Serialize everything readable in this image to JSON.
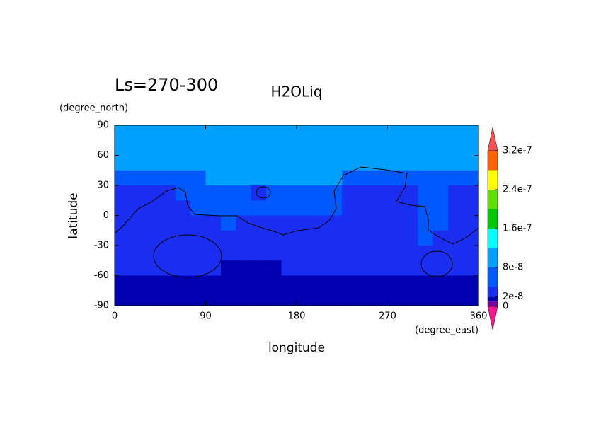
{
  "chart_data": {
    "type": "contour",
    "title": "H2OLiq",
    "subtitle": "Ls=270-300",
    "x_label": "longitude",
    "y_label": "latitude",
    "x_unit": "(degree_east)",
    "y_unit": "(degree_north)",
    "xlim": [
      0,
      360
    ],
    "xticks": [
      0,
      90,
      180,
      270,
      360
    ],
    "ylim": [
      -90,
      90
    ],
    "yticks": [
      90,
      60,
      30,
      0,
      -30,
      -60,
      -90
    ],
    "x": [
      7.5,
      22.5,
      37.5,
      52.5,
      67.5,
      82.5,
      97.5,
      112.5,
      127.5,
      142.5,
      157.5,
      172.5,
      187.5,
      202.5,
      217.5,
      232.5,
      247.5,
      262.5,
      277.5,
      292.5,
      307.5,
      322.5,
      337.5,
      352.5
    ],
    "y": [
      82.5,
      67.5,
      52.5,
      37.5,
      22.5,
      7.5,
      -7.5,
      -22.5,
      -37.5,
      -52.5,
      -67.5,
      -82.5
    ],
    "z": [
      [
        1e-07,
        1e-07,
        1e-07,
        1e-07,
        1e-07,
        1e-07,
        1e-07,
        1e-07,
        1e-07,
        1e-07,
        1e-07,
        1e-07,
        1e-07,
        1e-07,
        1e-07,
        1e-07,
        1e-07,
        1e-07,
        1e-07,
        1e-07,
        1e-07,
        1e-07,
        1e-07,
        1e-07
      ],
      [
        1e-07,
        1e-07,
        1e-07,
        1e-07,
        1e-07,
        1e-07,
        1e-07,
        1e-07,
        1e-07,
        1e-07,
        1e-07,
        1e-07,
        1e-07,
        1e-07,
        1e-07,
        1e-07,
        1e-07,
        1e-07,
        1e-07,
        1e-07,
        1e-07,
        1e-07,
        1e-07,
        1e-07
      ],
      [
        1e-07,
        1e-07,
        1e-07,
        1e-07,
        1e-07,
        1e-07,
        1e-07,
        1e-07,
        1e-07,
        1e-07,
        1e-07,
        1e-07,
        1e-07,
        1e-07,
        1e-07,
        1e-07,
        1e-07,
        1e-07,
        1e-07,
        1e-07,
        1e-07,
        1e-07,
        1e-07,
        1e-07
      ],
      [
        6e-08,
        6e-08,
        6e-08,
        6e-08,
        6e-08,
        6e-08,
        1e-07,
        1e-07,
        1e-07,
        1e-07,
        1e-07,
        1e-07,
        1e-07,
        1e-07,
        1e-07,
        6e-08,
        6e-08,
        6e-08,
        6e-08,
        6e-08,
        6e-08,
        6e-08,
        6e-08,
        6e-08
      ],
      [
        3e-08,
        3e-08,
        3e-08,
        3e-08,
        6e-08,
        6e-08,
        6e-08,
        6e-08,
        6e-08,
        3e-08,
        6e-08,
        6e-08,
        6e-08,
        6e-08,
        6e-08,
        3e-08,
        3e-08,
        3e-08,
        3e-08,
        3e-08,
        6e-08,
        6e-08,
        3e-08,
        3e-08
      ],
      [
        3e-08,
        3e-08,
        3e-08,
        3e-08,
        3e-08,
        6e-08,
        6e-08,
        6e-08,
        6e-08,
        6e-08,
        6e-08,
        6e-08,
        6e-08,
        6e-08,
        6e-08,
        3e-08,
        3e-08,
        3e-08,
        3e-08,
        3e-08,
        6e-08,
        6e-08,
        3e-08,
        3e-08
      ],
      [
        3e-08,
        3e-08,
        3e-08,
        3e-08,
        3e-08,
        3e-08,
        3e-08,
        6e-08,
        3e-08,
        3e-08,
        3e-08,
        3e-08,
        3e-08,
        3e-08,
        3e-08,
        3e-08,
        3e-08,
        3e-08,
        3e-08,
        3e-08,
        6e-08,
        6e-08,
        3e-08,
        3e-08
      ],
      [
        3e-08,
        3e-08,
        3e-08,
        3e-08,
        3e-08,
        3e-08,
        3e-08,
        3e-08,
        3e-08,
        3e-08,
        3e-08,
        3e-08,
        3e-08,
        3e-08,
        3e-08,
        3e-08,
        3e-08,
        3e-08,
        3e-08,
        3e-08,
        6e-08,
        3e-08,
        3e-08,
        3e-08
      ],
      [
        3e-08,
        3e-08,
        3e-08,
        3e-08,
        3e-08,
        3e-08,
        3e-08,
        3e-08,
        3e-08,
        3e-08,
        3e-08,
        3e-08,
        3e-08,
        3e-08,
        3e-08,
        3e-08,
        3e-08,
        3e-08,
        3e-08,
        3e-08,
        3e-08,
        3e-08,
        3e-08,
        3e-08
      ],
      [
        3e-08,
        3e-08,
        3e-08,
        3e-08,
        3e-08,
        3e-08,
        3e-08,
        1.5e-08,
        1.5e-08,
        1.5e-08,
        1.5e-08,
        3e-08,
        3e-08,
        3e-08,
        3e-08,
        3e-08,
        3e-08,
        3e-08,
        3e-08,
        3e-08,
        3e-08,
        3e-08,
        3e-08,
        3e-08
      ],
      [
        1.5e-08,
        1.5e-08,
        1.5e-08,
        1.5e-08,
        1.5e-08,
        1.5e-08,
        1.5e-08,
        1.5e-08,
        1.5e-08,
        1.5e-08,
        1.5e-08,
        1.5e-08,
        1.5e-08,
        1.5e-08,
        1.5e-08,
        1.5e-08,
        1.5e-08,
        1.5e-08,
        1.5e-08,
        1.5e-08,
        1.5e-08,
        1.5e-08,
        1.5e-08,
        1.5e-08
      ],
      [
        1.5e-08,
        1.5e-08,
        1.5e-08,
        1.5e-08,
        1.5e-08,
        1.5e-08,
        1.5e-08,
        1.5e-08,
        1.5e-08,
        1.5e-08,
        1.5e-08,
        1.5e-08,
        1.5e-08,
        1.5e-08,
        1.5e-08,
        1.5e-08,
        1.5e-08,
        1.5e-08,
        1.5e-08,
        1.5e-08,
        1.5e-08,
        1.5e-08,
        1.5e-08,
        1.5e-08
      ]
    ],
    "levels": [
      0,
      1e-08,
      2e-08,
      4e-08,
      8e-08,
      1.2e-07,
      1.6e-07,
      2e-07,
      2.4e-07,
      2.8e-07,
      3.2e-07
    ],
    "colors": [
      "#78009a",
      "#0000b0",
      "#1a2ef2",
      "#0058ff",
      "#00a0ff",
      "#00ffff",
      "#00c800",
      "#60e000",
      "#ffff00",
      "#ff6400"
    ],
    "under_color": "#ff1493",
    "over_color": "#ff5050",
    "cbar_ticks": [
      0,
      2e-08,
      8e-08,
      1.6e-07,
      2.4e-07,
      3.2e-07
    ]
  }
}
